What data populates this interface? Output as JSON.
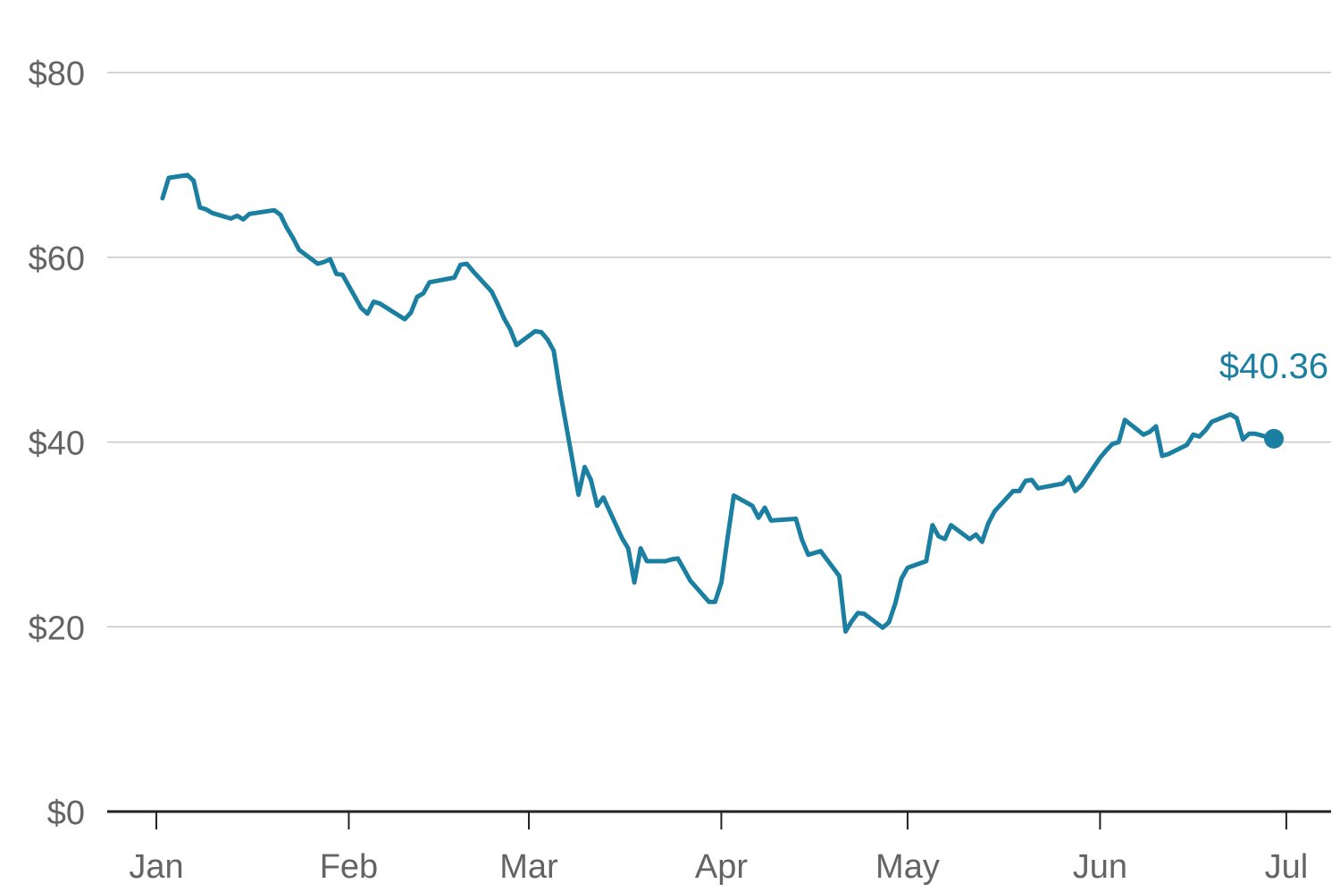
{
  "chart_data": {
    "type": "line",
    "title": "",
    "xlabel": "",
    "ylabel": "",
    "ylim": [
      0,
      80
    ],
    "y_ticks": [
      {
        "value": 0,
        "label": "$0"
      },
      {
        "value": 20,
        "label": "$20"
      },
      {
        "value": 40,
        "label": "$40"
      },
      {
        "value": 60,
        "label": "$60"
      },
      {
        "value": 80,
        "label": "$80"
      }
    ],
    "x_ticks": [
      {
        "date": "2020-01-01",
        "label": "Jan"
      },
      {
        "date": "2020-02-01",
        "label": "Feb"
      },
      {
        "date": "2020-03-01",
        "label": "Mar"
      },
      {
        "date": "2020-04-01",
        "label": "Apr"
      },
      {
        "date": "2020-05-01",
        "label": "May"
      },
      {
        "date": "2020-06-01",
        "label": "Jun"
      },
      {
        "date": "2020-07-01",
        "label": "Jul"
      }
    ],
    "grid": "horizontal",
    "line_color": "#1a7fa1",
    "end_label": "$40.36",
    "series": [
      {
        "points": [
          [
            "2020-01-02",
            66.4
          ],
          [
            "2020-01-03",
            68.6
          ],
          [
            "2020-01-06",
            68.9
          ],
          [
            "2020-01-07",
            68.3
          ],
          [
            "2020-01-08",
            65.4
          ],
          [
            "2020-01-09",
            65.2
          ],
          [
            "2020-01-10",
            64.8
          ],
          [
            "2020-01-13",
            64.2
          ],
          [
            "2020-01-14",
            64.5
          ],
          [
            "2020-01-15",
            64.1
          ],
          [
            "2020-01-16",
            64.7
          ],
          [
            "2020-01-20",
            65.1
          ],
          [
            "2020-01-21",
            64.6
          ],
          [
            "2020-01-22",
            63.2
          ],
          [
            "2020-01-23",
            62.1
          ],
          [
            "2020-01-24",
            60.8
          ],
          [
            "2020-01-27",
            59.3
          ],
          [
            "2020-01-28",
            59.5
          ],
          [
            "2020-01-29",
            59.8
          ],
          [
            "2020-01-30",
            58.2
          ],
          [
            "2020-01-31",
            58.1
          ],
          [
            "2020-02-03",
            54.5
          ],
          [
            "2020-02-04",
            53.9
          ],
          [
            "2020-02-05",
            55.2
          ],
          [
            "2020-02-06",
            55.0
          ],
          [
            "2020-02-10",
            53.3
          ],
          [
            "2020-02-11",
            54.0
          ],
          [
            "2020-02-12",
            55.7
          ],
          [
            "2020-02-13",
            56.1
          ],
          [
            "2020-02-14",
            57.3
          ],
          [
            "2020-02-18",
            57.8
          ],
          [
            "2020-02-19",
            59.2
          ],
          [
            "2020-02-20",
            59.3
          ],
          [
            "2020-02-21",
            58.5
          ],
          [
            "2020-02-24",
            56.3
          ],
          [
            "2020-02-25",
            54.9
          ],
          [
            "2020-02-26",
            53.4
          ],
          [
            "2020-02-27",
            52.2
          ],
          [
            "2020-02-28",
            50.5
          ],
          [
            "2020-03-02",
            52.0
          ],
          [
            "2020-03-03",
            51.9
          ],
          [
            "2020-03-04",
            51.1
          ],
          [
            "2020-03-05",
            49.9
          ],
          [
            "2020-03-06",
            45.6
          ],
          [
            "2020-03-09",
            34.3
          ],
          [
            "2020-03-10",
            37.3
          ],
          [
            "2020-03-11",
            35.9
          ],
          [
            "2020-03-12",
            33.1
          ],
          [
            "2020-03-13",
            34.0
          ],
          [
            "2020-03-16",
            29.6
          ],
          [
            "2020-03-17",
            28.5
          ],
          [
            "2020-03-18",
            24.8
          ],
          [
            "2020-03-19",
            28.5
          ],
          [
            "2020-03-20",
            27.1
          ],
          [
            "2020-03-23",
            27.1
          ],
          [
            "2020-03-24",
            27.3
          ],
          [
            "2020-03-25",
            27.4
          ],
          [
            "2020-03-26",
            26.2
          ],
          [
            "2020-03-27",
            25.0
          ],
          [
            "2020-03-30",
            22.7
          ],
          [
            "2020-03-31",
            22.7
          ],
          [
            "2020-04-01",
            24.8
          ],
          [
            "2020-04-02",
            29.6
          ],
          [
            "2020-04-03",
            34.2
          ],
          [
            "2020-04-06",
            33.1
          ],
          [
            "2020-04-07",
            31.8
          ],
          [
            "2020-04-08",
            32.9
          ],
          [
            "2020-04-09",
            31.5
          ],
          [
            "2020-04-13",
            31.7
          ],
          [
            "2020-04-14",
            29.4
          ],
          [
            "2020-04-15",
            27.8
          ],
          [
            "2020-04-17",
            28.2
          ],
          [
            "2020-04-20",
            25.5
          ],
          [
            "2020-04-21",
            19.5
          ],
          [
            "2020-04-22",
            20.6
          ],
          [
            "2020-04-23",
            21.5
          ],
          [
            "2020-04-24",
            21.4
          ],
          [
            "2020-04-27",
            19.9
          ],
          [
            "2020-04-28",
            20.5
          ],
          [
            "2020-04-29",
            22.5
          ],
          [
            "2020-04-30",
            25.2
          ],
          [
            "2020-05-01",
            26.4
          ],
          [
            "2020-05-04",
            27.1
          ],
          [
            "2020-05-05",
            31.0
          ],
          [
            "2020-05-06",
            29.8
          ],
          [
            "2020-05-07",
            29.5
          ],
          [
            "2020-05-08",
            31.0
          ],
          [
            "2020-05-11",
            29.5
          ],
          [
            "2020-05-12",
            30.0
          ],
          [
            "2020-05-13",
            29.2
          ],
          [
            "2020-05-14",
            31.2
          ],
          [
            "2020-05-15",
            32.5
          ],
          [
            "2020-05-18",
            34.7
          ],
          [
            "2020-05-19",
            34.7
          ],
          [
            "2020-05-20",
            35.8
          ],
          [
            "2020-05-21",
            35.9
          ],
          [
            "2020-05-22",
            35.0
          ],
          [
            "2020-05-26",
            35.5
          ],
          [
            "2020-05-27",
            36.2
          ],
          [
            "2020-05-28",
            34.7
          ],
          [
            "2020-05-29",
            35.3
          ],
          [
            "2020-06-01",
            38.3
          ],
          [
            "2020-06-02",
            39.1
          ],
          [
            "2020-06-03",
            39.8
          ],
          [
            "2020-06-04",
            40.0
          ],
          [
            "2020-06-05",
            42.4
          ],
          [
            "2020-06-08",
            40.8
          ],
          [
            "2020-06-09",
            41.1
          ],
          [
            "2020-06-10",
            41.7
          ],
          [
            "2020-06-11",
            38.5
          ],
          [
            "2020-06-12",
            38.7
          ],
          [
            "2020-06-15",
            39.7
          ],
          [
            "2020-06-16",
            40.8
          ],
          [
            "2020-06-17",
            40.6
          ],
          [
            "2020-06-18",
            41.3
          ],
          [
            "2020-06-19",
            42.2
          ],
          [
            "2020-06-22",
            43.0
          ],
          [
            "2020-06-23",
            42.6
          ],
          [
            "2020-06-24",
            40.3
          ],
          [
            "2020-06-25",
            40.9
          ],
          [
            "2020-06-26",
            40.9
          ],
          [
            "2020-06-29",
            40.36
          ]
        ]
      }
    ]
  }
}
